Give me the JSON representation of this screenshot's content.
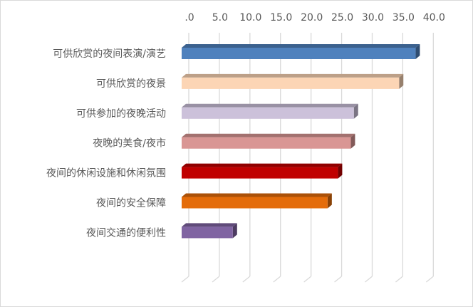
{
  "chart_data": {
    "type": "bar",
    "orientation": "horizontal",
    "style": "3d-clustered",
    "categories": [
      "可供欣赏的夜间表演/演艺",
      "可供欣赏的夜景",
      "可供参加的夜晚活动",
      "夜晚的美食/夜市",
      "夜间的休闲设施和休闲氛围",
      "夜间的安全保障",
      "夜间交通的便利性"
    ],
    "values": [
      37.8,
      35.1,
      27.7,
      27.2,
      25.1,
      23.4,
      7.9
    ],
    "colors": [
      "#4F81BD",
      "#FCD5B5",
      "#CCC1DA",
      "#D99694",
      "#C00000",
      "#E46C0A",
      "#8064A2"
    ],
    "tick_labels": [
      ".0",
      "5.0",
      "10.0",
      "15.0",
      "20.0",
      "25.0",
      "30.0",
      "35.0",
      "40.0"
    ],
    "xlim": [
      0,
      40
    ],
    "axis_position": "top",
    "grid": true,
    "legend": "none"
  }
}
